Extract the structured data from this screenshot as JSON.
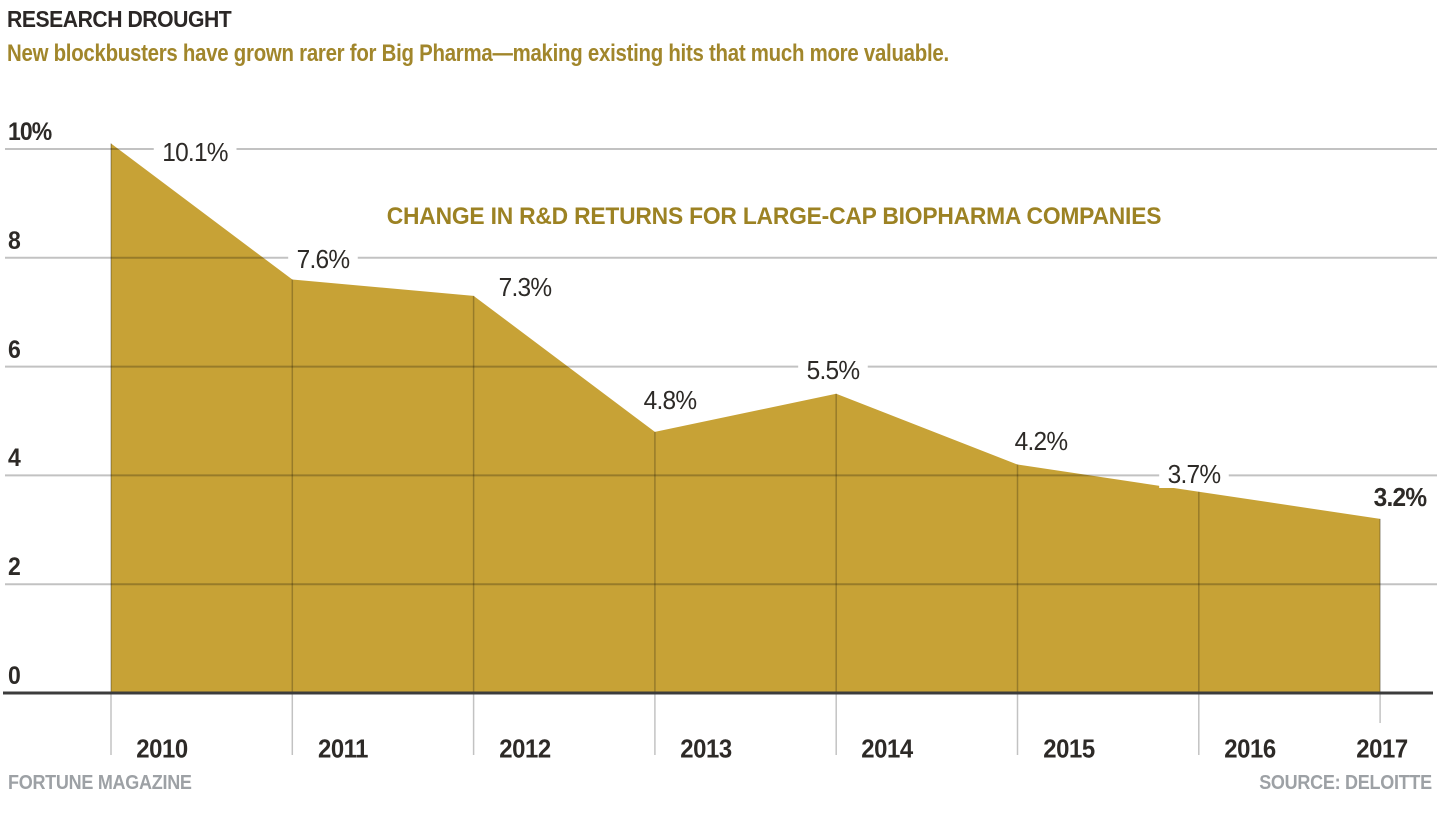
{
  "header": {
    "title": "RESEARCH DROUGHT",
    "subtitle": "New blockbusters have grown rarer for Big Pharma—making existing hits that much more valuable."
  },
  "chart_data": {
    "type": "area",
    "title": "CHANGE IN R&D RETURNS FOR LARGE-CAP BIOPHARMA COMPANIES",
    "categories": [
      "2010",
      "2011",
      "2012",
      "2013",
      "2014",
      "2015",
      "2016",
      "2017"
    ],
    "values": [
      10.1,
      7.6,
      7.3,
      4.8,
      5.5,
      4.2,
      3.7,
      3.2
    ],
    "point_labels": [
      "10.1%",
      "7.6%",
      "7.3%",
      "4.8%",
      "5.5%",
      "4.2%",
      "3.7%",
      "3.2%"
    ],
    "emphasized_point": "3.2%",
    "ylim": [
      0,
      10
    ],
    "ytick_values": [
      0,
      2,
      4,
      6,
      8,
      10
    ],
    "ytick_labels": [
      "0",
      "2",
      "4",
      "6",
      "8",
      "10%"
    ],
    "xlabel": "",
    "ylabel": "",
    "grid": true,
    "legend": "none",
    "colors": {
      "area": "#c7a236",
      "chart_title_gold": "#9c8223",
      "subtitle_gold": "#a1862b",
      "text_dark": "#2d2a27",
      "axis_line": "#3c3c3c",
      "footer_gray": "#9da1a5"
    }
  },
  "footer": {
    "left": "FORTUNE MAGAZINE",
    "right": "SOURCE: DELOITTE"
  }
}
